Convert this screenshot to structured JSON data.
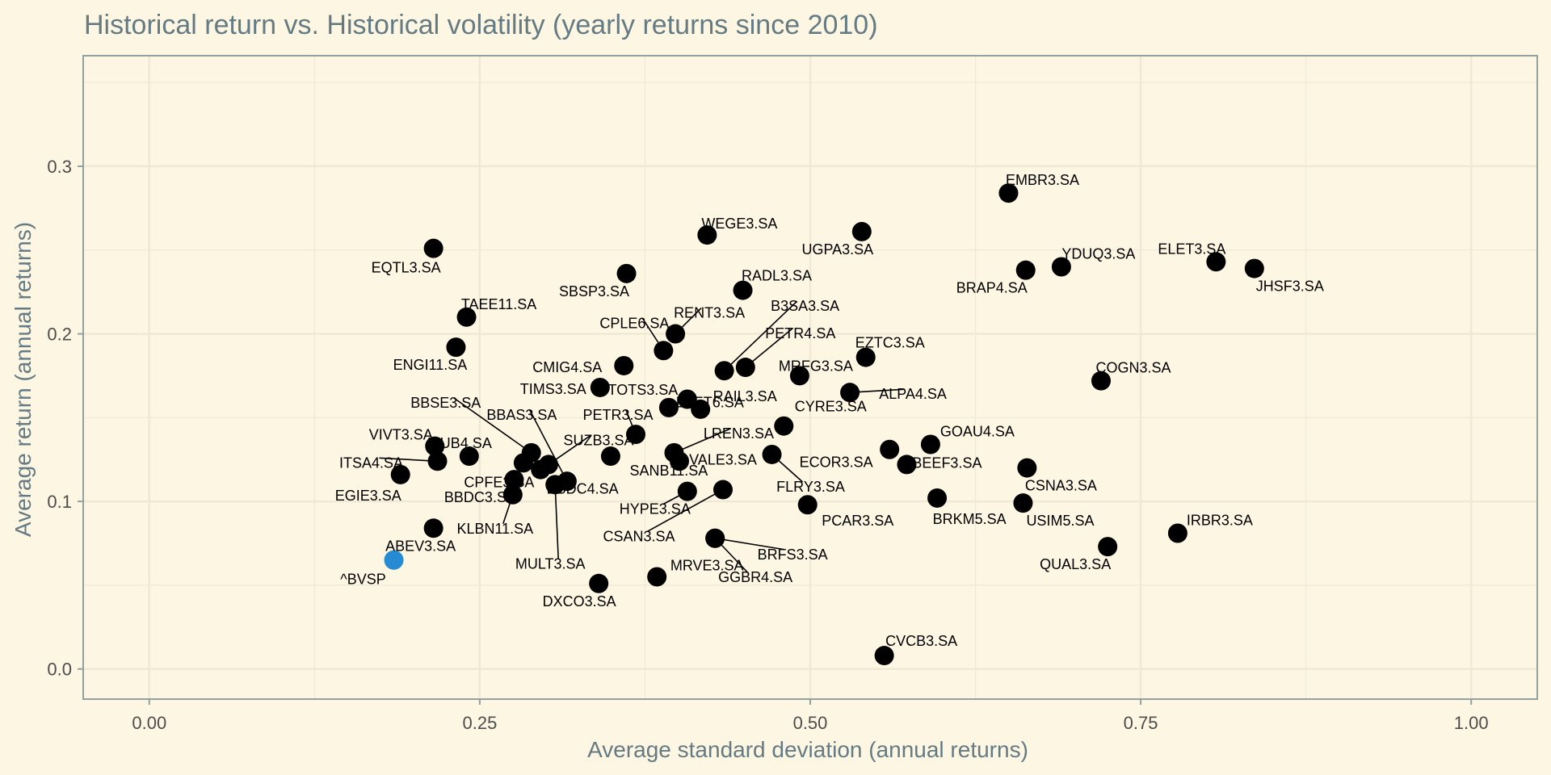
{
  "chart_data": {
    "type": "scatter",
    "title": "Historical return vs. Historical volatility (yearly returns since 2010)",
    "xlabel": "Average standard deviation (annual returns)",
    "ylabel": "Average return (annual returns)",
    "xlim": [
      -0.05,
      1.05
    ],
    "ylim": [
      -0.018,
      0.366
    ],
    "x_ticks": [
      0.0,
      0.25,
      0.5,
      0.75,
      1.0
    ],
    "x_tick_labels": [
      "0.00",
      "0.25",
      "0.50",
      "0.75",
      "1.00"
    ],
    "y_ticks": [
      0.0,
      0.1,
      0.2,
      0.3
    ],
    "y_tick_labels": [
      "0.0",
      "0.1",
      "0.2",
      "0.3"
    ],
    "grid": true,
    "legend": "none",
    "colors": {
      "background": "#fdf6e3",
      "grid": "#eee8d5",
      "axis": "#93a1a1",
      "point": "#000000",
      "highlight": "#268bd2",
      "title": "#657b83"
    },
    "points": [
      {
        "label": "^BVSP",
        "x": 0.185,
        "y": 0.065,
        "highlight": true
      },
      {
        "label": "ABEV3.SA",
        "x": 0.215,
        "y": 0.084
      },
      {
        "label": "EGIE3.SA",
        "x": 0.19,
        "y": 0.116
      },
      {
        "label": "ITSA4.SA",
        "x": 0.218,
        "y": 0.124
      },
      {
        "label": "VIVT3.SA",
        "x": 0.216,
        "y": 0.133
      },
      {
        "label": "ITUB4.SA",
        "x": 0.242,
        "y": 0.127
      },
      {
        "label": "EQTL3.SA",
        "x": 0.215,
        "y": 0.251
      },
      {
        "label": "TAEE11.SA",
        "x": 0.24,
        "y": 0.21
      },
      {
        "label": "ENGI11.SA",
        "x": 0.232,
        "y": 0.192
      },
      {
        "label": "KLBN11.SA",
        "x": 0.275,
        "y": 0.104
      },
      {
        "label": "BBDC3.SA",
        "x": 0.276,
        "y": 0.113
      },
      {
        "label": "CPFE3.SA",
        "x": 0.283,
        "y": 0.123
      },
      {
        "label": "BBSE3.SA",
        "x": 0.289,
        "y": 0.129
      },
      {
        "label": "BBDC4.SA",
        "x": 0.296,
        "y": 0.119
      },
      {
        "label": "SUZB3.SA",
        "x": 0.302,
        "y": 0.122
      },
      {
        "label": "MULT3.SA",
        "x": 0.307,
        "y": 0.11
      },
      {
        "label": "BBAS3.SA",
        "x": 0.316,
        "y": 0.112
      },
      {
        "label": "SBSP3.SA",
        "x": 0.361,
        "y": 0.236
      },
      {
        "label": "CMIG4.SA",
        "x": 0.359,
        "y": 0.181
      },
      {
        "label": "TIMS3.SA",
        "x": 0.341,
        "y": 0.168
      },
      {
        "label": "SANB11.SA",
        "x": 0.349,
        "y": 0.127
      },
      {
        "label": "PETR3.SA",
        "x": 0.368,
        "y": 0.14
      },
      {
        "label": "DXCO3.SA",
        "x": 0.34,
        "y": 0.051
      },
      {
        "label": "CPLE6.SA",
        "x": 0.389,
        "y": 0.19
      },
      {
        "label": "RENT3.SA",
        "x": 0.398,
        "y": 0.2
      },
      {
        "label": "TOTS3.SA",
        "x": 0.393,
        "y": 0.156
      },
      {
        "label": "RAIL3.SA",
        "x": 0.417,
        "y": 0.155
      },
      {
        "label": "ELET6.SA",
        "x": 0.407,
        "y": 0.161
      },
      {
        "label": "LREN3.SA",
        "x": 0.397,
        "y": 0.129
      },
      {
        "label": "VALE3.SA",
        "x": 0.401,
        "y": 0.124
      },
      {
        "label": "HYPE3.SA",
        "x": 0.407,
        "y": 0.106
      },
      {
        "label": "CSAN3.SA",
        "x": 0.434,
        "y": 0.107
      },
      {
        "label": "MRVE3.SA",
        "x": 0.384,
        "y": 0.055
      },
      {
        "label": "WEGE3.SA",
        "x": 0.422,
        "y": 0.259
      },
      {
        "label": "RADL3.SA",
        "x": 0.449,
        "y": 0.226
      },
      {
        "label": "PETR4.SA",
        "x": 0.451,
        "y": 0.18
      },
      {
        "label": "B3SA3.SA",
        "x": 0.435,
        "y": 0.178
      },
      {
        "label": "GGBR4.SA",
        "x": 0.428,
        "y": 0.078
      },
      {
        "label": "BRFS3.SA",
        "x": 0.428,
        "y": 0.078
      },
      {
        "label": "CYRE3.SA",
        "x": 0.48,
        "y": 0.145
      },
      {
        "label": "FLRY3.SA",
        "x": 0.471,
        "y": 0.128
      },
      {
        "label": "PCAR3.SA",
        "x": 0.498,
        "y": 0.098
      },
      {
        "label": "MRFG3.SA",
        "x": 0.492,
        "y": 0.175
      },
      {
        "label": "EZTC3.SA",
        "x": 0.542,
        "y": 0.186
      },
      {
        "label": "ALPA4.SA",
        "x": 0.53,
        "y": 0.165
      },
      {
        "label": "UGPA3.SA",
        "x": 0.539,
        "y": 0.261
      },
      {
        "label": "ECOR3.SA",
        "x": 0.56,
        "y": 0.131
      },
      {
        "label": "BEEF3.SA",
        "x": 0.573,
        "y": 0.122
      },
      {
        "label": "GOAU4.SA",
        "x": 0.591,
        "y": 0.134
      },
      {
        "label": "BRKM5.SA",
        "x": 0.596,
        "y": 0.102
      },
      {
        "label": "CVCB3.SA",
        "x": 0.556,
        "y": 0.008
      },
      {
        "label": "EMBR3.SA",
        "x": 0.65,
        "y": 0.284
      },
      {
        "label": "BRAP4.SA",
        "x": 0.663,
        "y": 0.238
      },
      {
        "label": "YDUQ3.SA",
        "x": 0.69,
        "y": 0.24
      },
      {
        "label": "CSNA3.SA",
        "x": 0.664,
        "y": 0.12
      },
      {
        "label": "USIM5.SA",
        "x": 0.661,
        "y": 0.099
      },
      {
        "label": "COGN3.SA",
        "x": 0.72,
        "y": 0.172
      },
      {
        "label": "QUAL3.SA",
        "x": 0.725,
        "y": 0.073
      },
      {
        "label": "IRBR3.SA",
        "x": 0.778,
        "y": 0.081
      },
      {
        "label": "ELET3.SA",
        "x": 0.807,
        "y": 0.243
      },
      {
        "label": "JHSF3.SA",
        "x": 0.836,
        "y": 0.239
      }
    ]
  }
}
